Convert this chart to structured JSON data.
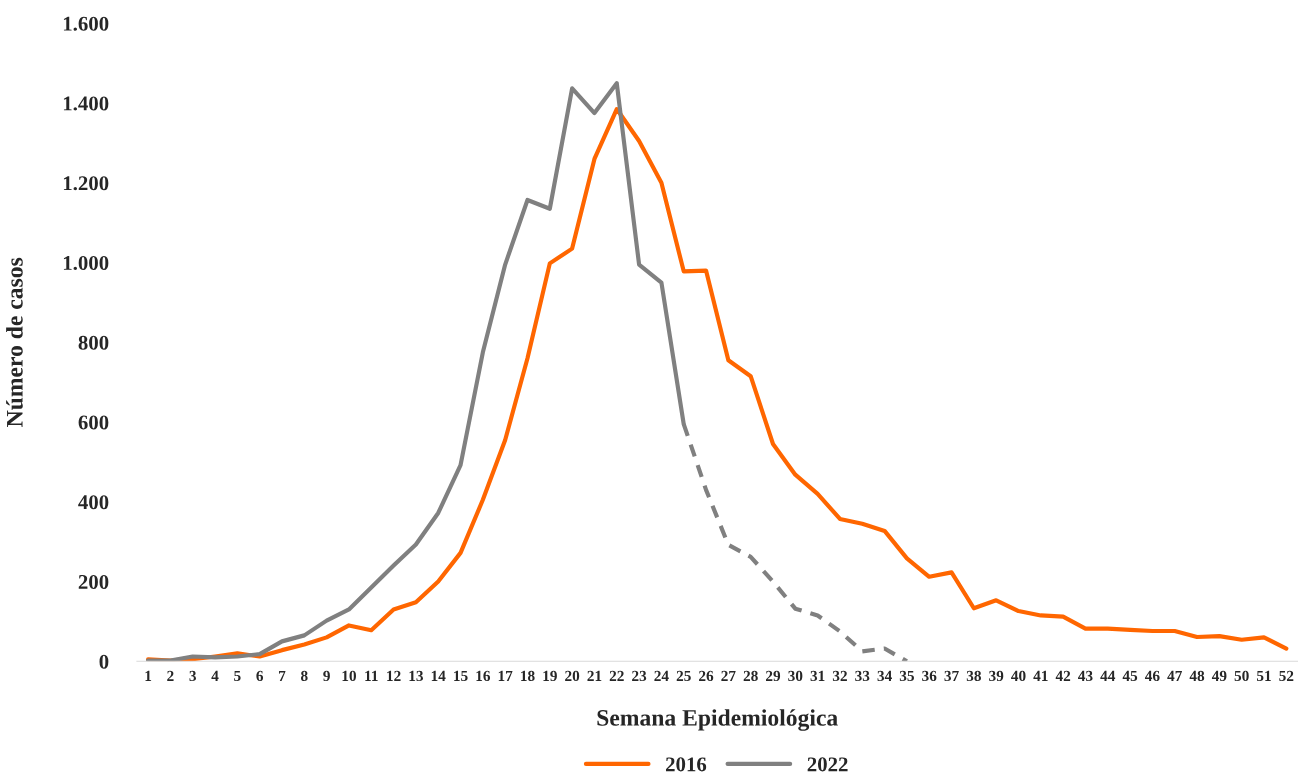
{
  "chart_data": {
    "type": "line",
    "xlabel": "Semana Epidemiológica",
    "ylabel": "Número de casos",
    "categories": [
      "1",
      "2",
      "3",
      "4",
      "5",
      "6",
      "7",
      "8",
      "9",
      "10",
      "11",
      "12",
      "13",
      "14",
      "15",
      "16",
      "17",
      "18",
      "19",
      "20",
      "21",
      "22",
      "23",
      "24",
      "25",
      "26",
      "27",
      "28",
      "29",
      "30",
      "31",
      "32",
      "33",
      "34",
      "35",
      "36",
      "37",
      "38",
      "39",
      "40",
      "41",
      "42",
      "43",
      "44",
      "45",
      "46",
      "47",
      "48",
      "49",
      "50",
      "51",
      "52"
    ],
    "ylim": [
      0,
      1600
    ],
    "yticks": [
      0,
      {
        "value": 200,
        "label": "200"
      },
      {
        "value": 400,
        "label": "400"
      },
      {
        "value": 600,
        "label": "600"
      },
      {
        "value": 800,
        "label": "800"
      },
      {
        "value": 1000,
        "label": "1.000"
      },
      {
        "value": 1200,
        "label": "1.200"
      },
      {
        "value": 1400,
        "label": "1.400"
      },
      {
        "value": 1600,
        "label": "1.600"
      }
    ],
    "grid": false,
    "legend": "bottom",
    "marker": "none",
    "series": [
      {
        "name": "2016",
        "color": "#ff6600",
        "line_style": "solid",
        "values": [
          5,
          2,
          5,
          12,
          20,
          12,
          28,
          42,
          60,
          90,
          78,
          130,
          148,
          200,
          272,
          405,
          555,
          760,
          998,
          1035,
          1260,
          1385,
          1305,
          1200,
          978,
          980,
          755,
          715,
          545,
          468,
          420,
          357,
          345,
          327,
          258,
          212,
          223,
          133,
          153,
          126,
          115,
          112,
          82,
          82,
          79,
          76,
          76,
          61,
          63,
          54,
          60,
          32
        ]
      },
      {
        "name": "2022",
        "color": "#808080",
        "line_style": "solid",
        "x": [
          "1",
          "2",
          "3",
          "4",
          "5",
          "6",
          "7",
          "8",
          "9",
          "10",
          "11",
          "12",
          "13",
          "14",
          "15",
          "16",
          "17",
          "18",
          "19",
          "20",
          "21",
          "22",
          "23",
          "24",
          "25"
        ],
        "values": [
          2,
          2,
          12,
          10,
          12,
          18,
          50,
          65,
          102,
          130,
          185,
          240,
          293,
          372,
          492,
          775,
          995,
          1157,
          1135,
          1437,
          1375,
          1450,
          995,
          950,
          595
        ]
      },
      {
        "color": "#808080",
        "line_style": "dashed",
        "x": [
          "25",
          "26",
          "27",
          "28",
          "29",
          "30",
          "31",
          "32",
          "33",
          "34",
          "35"
        ],
        "values": [
          595,
          430,
          292,
          262,
          200,
          132,
          115,
          75,
          25,
          32,
          0
        ]
      }
    ]
  }
}
